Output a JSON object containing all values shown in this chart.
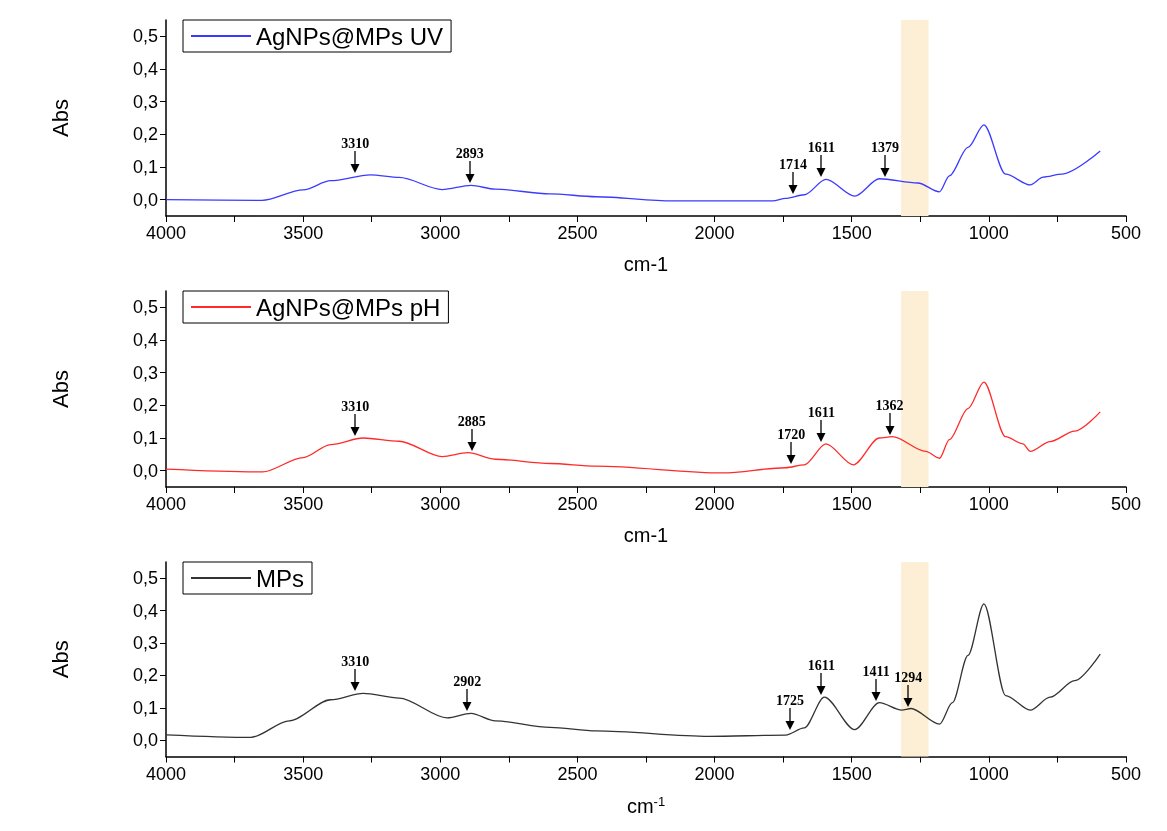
{
  "chart_data": [
    {
      "type": "line",
      "xlabel": "cm-1",
      "ylabel": "Abs",
      "legend": "top left",
      "grid": false,
      "marker": "none",
      "line_style": "solid",
      "xlim": [
        4000,
        500
      ],
      "xticks": [
        4000,
        {
          "value": 3750,
          "label": null
        },
        3500,
        {
          "value": 3250,
          "label": null
        },
        3000,
        {
          "value": 2750,
          "label": null
        },
        2500,
        {
          "value": 2250,
          "label": null
        },
        2000,
        {
          "value": 1750,
          "label": null
        },
        1500,
        {
          "value": 1250,
          "label": null
        },
        1000,
        {
          "value": 750,
          "label": null
        },
        500
      ],
      "ylim": [
        -0.05,
        0.55
      ],
      "yticks": [
        {
          "value": 0,
          "label": "0,0"
        },
        {
          "value": 0.1,
          "label": "0,1"
        },
        {
          "value": 0.2,
          "label": "0,2"
        },
        {
          "value": 0.3,
          "label": "0,3"
        },
        {
          "value": 0.4,
          "label": "0,4"
        },
        {
          "value": 0.5,
          "label": "0,5"
        }
      ],
      "bands": [
        {
          "axis": "x",
          "from": 1320,
          "to": 1220,
          "color": "#fcefd6"
        }
      ],
      "annotations": [
        {
          "text": "3310",
          "x": 3310,
          "y": 0.076
        },
        {
          "text": "2893",
          "x": 2893,
          "y": 0.044
        },
        {
          "text": "1714",
          "x": 1714,
          "y": 0.012
        },
        {
          "text": "1611",
          "x": 1611,
          "y": 0.062
        },
        {
          "text": "1379",
          "x": 1379,
          "y": 0.064
        }
      ],
      "series": [
        {
          "name": "AgNPs@MPs UV",
          "color": "#3b3bff",
          "x": [
            4000,
            3650,
            3500,
            3400,
            3255,
            3150,
            2993,
            2888,
            2800,
            2600,
            2432,
            2155,
            1788,
            1741,
            1673,
            1594,
            1489,
            1399,
            1259,
            1180,
            1144,
            1076,
            1018,
            939,
            849,
            802,
            734,
            594
          ],
          "values": [
            0.0,
            -0.002,
            0.03,
            0.058,
            0.076,
            0.068,
            0.031,
            0.044,
            0.032,
            0.018,
            0.009,
            -0.004,
            -0.004,
            0.004,
            0.015,
            0.062,
            0.011,
            0.064,
            0.051,
            0.024,
            0.073,
            0.16,
            0.229,
            0.078,
            0.045,
            0.069,
            0.078,
            0.149
          ]
        }
      ]
    },
    {
      "type": "line",
      "xlabel": "cm-1",
      "ylabel": "Abs",
      "legend": "top left",
      "grid": false,
      "marker": "none",
      "line_style": "solid",
      "xlim": [
        4000,
        500
      ],
      "xticks": [
        4000,
        {
          "value": 3750,
          "label": null
        },
        3500,
        {
          "value": 3250,
          "label": null
        },
        3000,
        {
          "value": 2750,
          "label": null
        },
        2500,
        {
          "value": 2250,
          "label": null
        },
        2000,
        {
          "value": 1750,
          "label": null
        },
        1500,
        {
          "value": 1250,
          "label": null
        },
        1000,
        {
          "value": 750,
          "label": null
        },
        500
      ],
      "ylim": [
        -0.05,
        0.55
      ],
      "yticks": [
        {
          "value": 0,
          "label": "0,0"
        },
        {
          "value": 0.1,
          "label": "0,1"
        },
        {
          "value": 0.2,
          "label": "0,2"
        },
        {
          "value": 0.3,
          "label": "0,3"
        },
        {
          "value": 0.4,
          "label": "0,4"
        },
        {
          "value": 0.5,
          "label": "0,5"
        }
      ],
      "bands": [
        {
          "axis": "x",
          "from": 1320,
          "to": 1220,
          "color": "#fcefd6"
        }
      ],
      "annotations": [
        {
          "text": "3310",
          "x": 3310,
          "y": 0.1
        },
        {
          "text": "2885",
          "x": 2885,
          "y": 0.055
        },
        {
          "text": "1720",
          "x": 1720,
          "y": 0.015
        },
        {
          "text": "1611",
          "x": 1611,
          "y": 0.082
        },
        {
          "text": "1362",
          "x": 1362,
          "y": 0.104
        }
      ],
      "series": [
        {
          "name": "AgNPs@MPs pH",
          "color": "#ff2a2a",
          "x": [
            4000,
            3648,
            3500,
            3400,
            3281,
            3150,
            2993,
            2899,
            2800,
            2600,
            2432,
            1971,
            1741,
            1673,
            1594,
            1494,
            1399,
            1352,
            1230,
            1180,
            1144,
            1076,
            1018,
            939,
            876,
            849,
            777,
            687,
            594
          ],
          "values": [
            0.005,
            -0.004,
            0.04,
            0.08,
            0.1,
            0.09,
            0.043,
            0.055,
            0.035,
            0.022,
            0.014,
            -0.007,
            0.009,
            0.018,
            0.082,
            0.018,
            0.1,
            0.104,
            0.059,
            0.038,
            0.095,
            0.19,
            0.271,
            0.104,
            0.082,
            0.059,
            0.089,
            0.121,
            0.18
          ]
        }
      ]
    },
    {
      "type": "line",
      "xlabel": "cm$^{-1}$",
      "ylabel": "Abs",
      "legend": "top left",
      "grid": false,
      "marker": "none",
      "line_style": "solid",
      "xlim": [
        4000,
        500
      ],
      "xticks": [
        4000,
        {
          "value": 3750,
          "label": null
        },
        3500,
        {
          "value": 3250,
          "label": null
        },
        3000,
        {
          "value": 2750,
          "label": null
        },
        2500,
        {
          "value": 2250,
          "label": null
        },
        2000,
        {
          "value": 1750,
          "label": null
        },
        1500,
        {
          "value": 1250,
          "label": null
        },
        1000,
        {
          "value": 750,
          "label": null
        },
        500
      ],
      "ylim": [
        -0.05,
        0.55
      ],
      "yticks": [
        {
          "value": 0,
          "label": "0,0"
        },
        {
          "value": 0.1,
          "label": "0,1"
        },
        {
          "value": 0.2,
          "label": "0,2"
        },
        {
          "value": 0.3,
          "label": "0,3"
        },
        {
          "value": 0.4,
          "label": "0,4"
        },
        {
          "value": 0.5,
          "label": "0,5"
        }
      ],
      "bands": [
        {
          "axis": "x",
          "from": 1320,
          "to": 1220,
          "color": "#fcefd6"
        }
      ],
      "annotations": [
        {
          "text": "3310",
          "x": 3310,
          "y": 0.145
        },
        {
          "text": "2902",
          "x": 2902,
          "y": 0.083
        },
        {
          "text": "1725",
          "x": 1725,
          "y": 0.025
        },
        {
          "text": "1611",
          "x": 1611,
          "y": 0.133
        },
        {
          "text": "1411",
          "x": 1411,
          "y": 0.116
        },
        {
          "text": "1294",
          "x": 1294,
          "y": 0.097
        }
      ],
      "series": [
        {
          "name": "MPs",
          "color": "#333333",
          "x": [
            4000,
            3691,
            3550,
            3400,
            3281,
            3150,
            2975,
            2888,
            2800,
            2600,
            2432,
            2021,
            1741,
            1673,
            1600,
            1489,
            1399,
            1318,
            1284,
            1180,
            1133,
            1076,
            1018,
            939,
            849,
            777,
            687,
            594
          ],
          "values": [
            0.017,
            0.009,
            0.06,
            0.125,
            0.145,
            0.13,
            0.069,
            0.083,
            0.06,
            0.04,
            0.029,
            0.012,
            0.016,
            0.038,
            0.133,
            0.033,
            0.116,
            0.093,
            0.098,
            0.05,
            0.116,
            0.262,
            0.421,
            0.138,
            0.093,
            0.133,
            0.184,
            0.266
          ]
        }
      ]
    }
  ]
}
